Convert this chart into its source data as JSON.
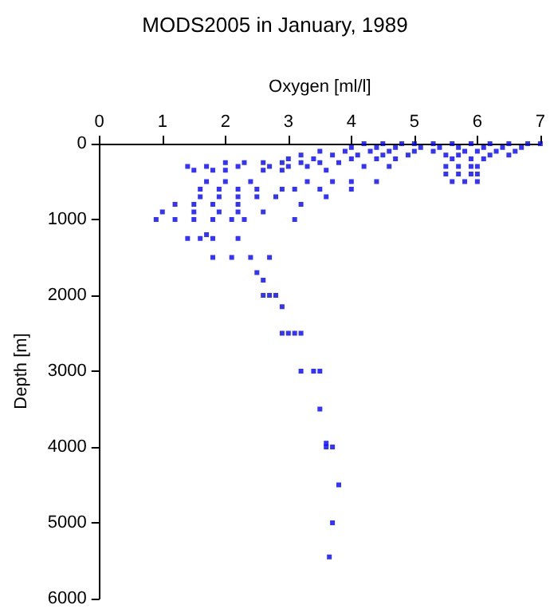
{
  "chart_data": {
    "type": "scatter",
    "title": "MODS2005 in January, 1989",
    "xlabel": "Oxygen [ml/l]",
    "ylabel": "Depth [m]",
    "xlim": [
      0,
      7
    ],
    "xticks": [
      0,
      1,
      2,
      3,
      4,
      5,
      6,
      7
    ],
    "ylim": [
      6000,
      0
    ],
    "yticks": [
      0,
      1000,
      2000,
      3000,
      4000,
      5000,
      6000
    ],
    "grid": false,
    "marker": "square",
    "series": [
      {
        "color": "#0000ff",
        "x": [
          4.2,
          4.5,
          4.8,
          5.0,
          5.3,
          5.6,
          5.9,
          6.2,
          6.5,
          6.8,
          7.0,
          4.0,
          4.4,
          4.7,
          5.1,
          5.4,
          5.7,
          6.1,
          6.4,
          6.7,
          3.5,
          3.9,
          4.3,
          4.6,
          5.0,
          5.3,
          5.8,
          6.0,
          6.3,
          6.6,
          3.2,
          3.7,
          4.1,
          4.5,
          4.9,
          5.5,
          5.7,
          6.2,
          6.5,
          3.0,
          3.4,
          4.0,
          4.4,
          4.7,
          5.6,
          5.9,
          6.1,
          2.0,
          2.3,
          2.6,
          2.9,
          3.2,
          3.5,
          3.8,
          1.4,
          1.7,
          2.2,
          2.7,
          3.0,
          3.3,
          4.2,
          4.6,
          5.5,
          5.7,
          5.9,
          6.0,
          1.5,
          1.8,
          2.0,
          2.6,
          2.9,
          3.6,
          5.5,
          5.7,
          5.9,
          6.0,
          1.7,
          2.0,
          2.4,
          3.3,
          3.7,
          4.0,
          4.4,
          5.6,
          5.8,
          6.0,
          1.6,
          1.9,
          2.2,
          2.5,
          2.9,
          3.1,
          3.5,
          4.0,
          1.6,
          1.9,
          2.2,
          2.5,
          2.8,
          3.6,
          1.2,
          1.5,
          1.8,
          2.2,
          3.2,
          1.0,
          1.5,
          1.9,
          2.2,
          2.6,
          0.9,
          1.2,
          1.5,
          1.8,
          2.1,
          2.3,
          3.1,
          1.7,
          1.4,
          1.6,
          1.8,
          2.2,
          1.8,
          2.1,
          2.4,
          2.7,
          2.5,
          2.6,
          2.6,
          2.7,
          2.8,
          2.9,
          2.9,
          3.0,
          3.1,
          3.2,
          3.2,
          3.4,
          3.5,
          3.5,
          3.6,
          3.6,
          3.7,
          3.8,
          3.7,
          3.65
        ],
        "values": [
          0,
          0,
          0,
          0,
          0,
          0,
          0,
          0,
          0,
          0,
          0,
          50,
          50,
          50,
          50,
          50,
          50,
          50,
          50,
          50,
          100,
          100,
          100,
          100,
          100,
          100,
          100,
          100,
          100,
          100,
          150,
          150,
          150,
          150,
          150,
          150,
          150,
          150,
          150,
          200,
          200,
          200,
          200,
          200,
          200,
          200,
          200,
          250,
          250,
          250,
          250,
          250,
          250,
          250,
          300,
          300,
          300,
          300,
          300,
          300,
          300,
          300,
          300,
          300,
          300,
          300,
          350,
          350,
          350,
          350,
          350,
          350,
          400,
          400,
          400,
          400,
          500,
          500,
          500,
          500,
          500,
          500,
          500,
          500,
          500,
          500,
          600,
          600,
          600,
          600,
          600,
          600,
          600,
          600,
          700,
          700,
          700,
          700,
          700,
          700,
          800,
          800,
          800,
          800,
          800,
          900,
          900,
          900,
          900,
          900,
          1000,
          1000,
          1000,
          1000,
          1000,
          1000,
          1000,
          1200,
          1250,
          1250,
          1250,
          1250,
          1500,
          1500,
          1500,
          1500,
          1700,
          1800,
          2000,
          2000,
          2000,
          2150,
          2500,
          2500,
          2500,
          2500,
          3000,
          3000,
          3000,
          3500,
          3950,
          4000,
          4000,
          4500,
          5000,
          5450
        ]
      }
    ]
  }
}
